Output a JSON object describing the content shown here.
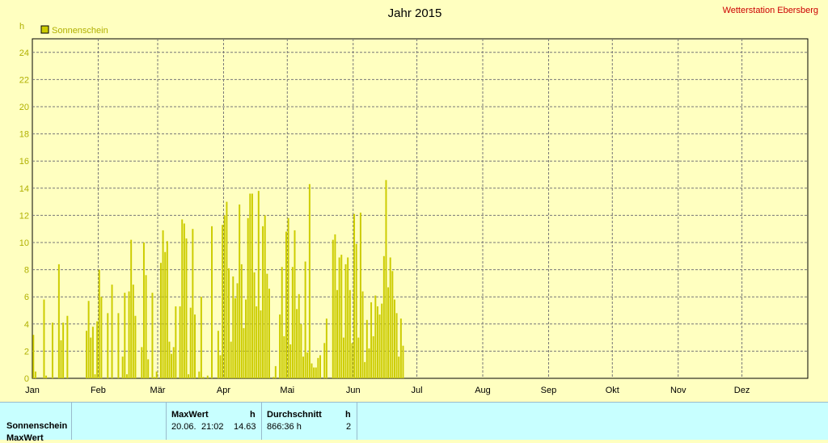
{
  "chart_data": {
    "type": "bar",
    "title": "Jahr 2015",
    "station": "Wetterstation Ebersberg",
    "ylabel": "h",
    "ylim": [
      0,
      25
    ],
    "yticks": [
      0,
      2,
      4,
      6,
      8,
      10,
      12,
      14,
      16,
      18,
      20,
      22,
      24
    ],
    "xlim": [
      0,
      365
    ],
    "month_labels": [
      "Jan",
      "Feb",
      "Mär",
      "Apr",
      "Mai",
      "Jun",
      "Jul",
      "Aug",
      "Sep",
      "Okt",
      "Nov",
      "Dez"
    ],
    "month_starts": [
      0,
      31,
      59,
      90,
      120,
      151,
      181,
      212,
      243,
      273,
      304,
      334
    ],
    "grid": true,
    "legend_position": "top-left",
    "series": [
      {
        "name": "Sonnenschein",
        "color": "#cccc00",
        "values": [
          3.2,
          0.5,
          0,
          0,
          0,
          5.8,
          0.2,
          0,
          0,
          4.1,
          0,
          0,
          8.4,
          2.8,
          4.1,
          0,
          4.6,
          0,
          0,
          0,
          0,
          0,
          0,
          0,
          0,
          3.5,
          5.7,
          3,
          3.8,
          0.3,
          4.2,
          8,
          6,
          0,
          0,
          4.8,
          0,
          6.9,
          0,
          0,
          4.8,
          0,
          1.6,
          6.3,
          0.3,
          6.4,
          10.2,
          6.9,
          4.6,
          0,
          0,
          2.3,
          10,
          7.6,
          1.4,
          0,
          6.3,
          0.1,
          0.5,
          0,
          8.5,
          10.9,
          9.3,
          10.1,
          2.7,
          1.8,
          2.3,
          5.3,
          0,
          5.3,
          11.7,
          11.4,
          10.3,
          0.3,
          5.2,
          11,
          4.7,
          0,
          0.5,
          6,
          0.1,
          0,
          0.2,
          0,
          11.2,
          0,
          0,
          3.5,
          1.7,
          11.3,
          12,
          13,
          8.1,
          2.7,
          7.5,
          5.9,
          7,
          12.8,
          8.4,
          3.7,
          5.8,
          11.8,
          13.6,
          13.6,
          7.8,
          5.3,
          13.8,
          5,
          11.2,
          12,
          7.7,
          6.6,
          0,
          0.1,
          0.9,
          0,
          4.7,
          8.2,
          3.1,
          10.8,
          11.8,
          2.5,
          8.2,
          10.9,
          5.1,
          6.2,
          4,
          1.6,
          8.6,
          1.9,
          14.3,
          1.1,
          0.8,
          0.8,
          1.5,
          1.7,
          0,
          2.6,
          4.4,
          0,
          0,
          10.2,
          10.6,
          6.5,
          8.9,
          9.1,
          3,
          8.4,
          8.9,
          6.5,
          2.6,
          12.1,
          9.9,
          3,
          12.2,
          6.4,
          1.2,
          4.3,
          2.2,
          5.6,
          3.1,
          6.1,
          5.3,
          4.7,
          5.5,
          9,
          14.6,
          6.7,
          8.9,
          7.9,
          5.8,
          4.8,
          1.6,
          4.4,
          2.4
        ]
      }
    ]
  },
  "stats": {
    "row_labels": [
      "Sonnenschein",
      "MaxWert"
    ],
    "max_header": "MaxWert",
    "max_unit": "h",
    "max_date": "20.06.",
    "max_time": "21:02",
    "max_value": "14.63",
    "avg_header": "Durchschnitt",
    "avg_unit": "h",
    "avg_value": "866:36 h",
    "avg_extra": "2"
  }
}
